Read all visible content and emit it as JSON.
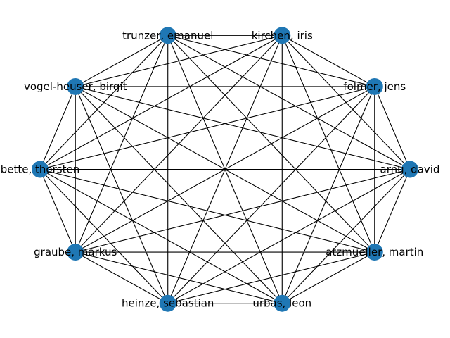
{
  "graph": {
    "node_color": "#1f77b4",
    "edge_color": "#000000",
    "nodes": [
      {
        "id": "kirchen",
        "label": "kirchen, iris"
      },
      {
        "id": "trunzer",
        "label": "trunzer, emanuel"
      },
      {
        "id": "vogel-heuser",
        "label": "vogel-heuser, birgit"
      },
      {
        "id": "bette",
        "label": "bette, thorsten"
      },
      {
        "id": "graube",
        "label": "graube, markus"
      },
      {
        "id": "heinze",
        "label": "heinze, sebastian"
      },
      {
        "id": "urbas",
        "label": "urbas, leon"
      },
      {
        "id": "atzmueller",
        "label": "atzmueller, martin"
      },
      {
        "id": "arnu",
        "label": "arnu, david"
      },
      {
        "id": "folmer",
        "label": "folmer, jens"
      }
    ],
    "edges": [
      [
        "kirchen",
        "trunzer"
      ],
      [
        "kirchen",
        "vogel-heuser"
      ],
      [
        "kirchen",
        "bette"
      ],
      [
        "kirchen",
        "graube"
      ],
      [
        "kirchen",
        "heinze"
      ],
      [
        "kirchen",
        "urbas"
      ],
      [
        "kirchen",
        "atzmueller"
      ],
      [
        "kirchen",
        "arnu"
      ],
      [
        "kirchen",
        "folmer"
      ],
      [
        "trunzer",
        "vogel-heuser"
      ],
      [
        "trunzer",
        "bette"
      ],
      [
        "trunzer",
        "graube"
      ],
      [
        "trunzer",
        "heinze"
      ],
      [
        "trunzer",
        "urbas"
      ],
      [
        "trunzer",
        "atzmueller"
      ],
      [
        "trunzer",
        "arnu"
      ],
      [
        "trunzer",
        "folmer"
      ],
      [
        "vogel-heuser",
        "bette"
      ],
      [
        "vogel-heuser",
        "graube"
      ],
      [
        "vogel-heuser",
        "heinze"
      ],
      [
        "vogel-heuser",
        "urbas"
      ],
      [
        "vogel-heuser",
        "atzmueller"
      ],
      [
        "vogel-heuser",
        "arnu"
      ],
      [
        "vogel-heuser",
        "folmer"
      ],
      [
        "bette",
        "graube"
      ],
      [
        "bette",
        "heinze"
      ],
      [
        "bette",
        "urbas"
      ],
      [
        "bette",
        "atzmueller"
      ],
      [
        "bette",
        "arnu"
      ],
      [
        "bette",
        "folmer"
      ],
      [
        "graube",
        "heinze"
      ],
      [
        "graube",
        "urbas"
      ],
      [
        "graube",
        "atzmueller"
      ],
      [
        "graube",
        "arnu"
      ],
      [
        "graube",
        "folmer"
      ],
      [
        "heinze",
        "urbas"
      ],
      [
        "heinze",
        "atzmueller"
      ],
      [
        "heinze",
        "arnu"
      ],
      [
        "heinze",
        "folmer"
      ],
      [
        "urbas",
        "atzmueller"
      ],
      [
        "urbas",
        "arnu"
      ],
      [
        "urbas",
        "folmer"
      ],
      [
        "atzmueller",
        "arnu"
      ],
      [
        "atzmueller",
        "folmer"
      ],
      [
        "arnu",
        "folmer"
      ]
    ]
  }
}
